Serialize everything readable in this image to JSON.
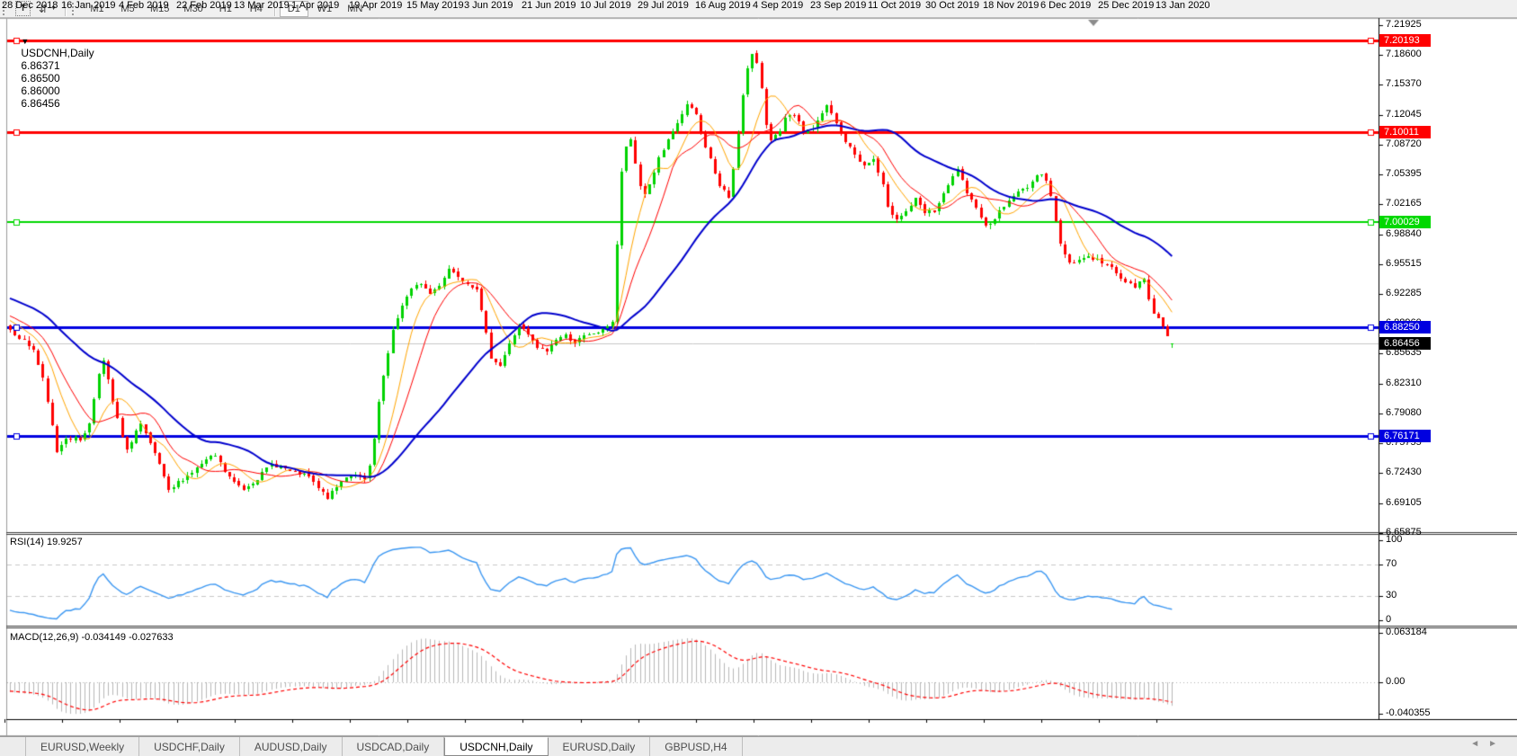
{
  "toolbar": {
    "text_tool_label": "T",
    "cursor_tool_icon": "arrows",
    "timeframes": [
      "M1",
      "M5",
      "M15",
      "M30",
      "H1",
      "H4",
      "D1",
      "W1",
      "MN"
    ],
    "active_timeframe": "D1"
  },
  "chart_info": {
    "collapse_arrow": "▼",
    "symbol_period": "USDCNH,Daily",
    "open": "6.86371",
    "high": "6.86500",
    "low": "6.86000",
    "close": "6.86456"
  },
  "chart_data": {
    "type": "candlestick",
    "title": "USDCNH,Daily",
    "symbol": "USDCNH",
    "timeframe": "Daily",
    "bar_count": 250,
    "pre_bars": 40,
    "pre_trend": [
      6.96,
      6.886
    ],
    "last_bar_ohlc": [
      6.86371,
      6.865,
      6.86,
      6.86456
    ],
    "close_anchors": [
      [
        0,
        6.88
      ],
      [
        3,
        6.868
      ],
      [
        5,
        6.858
      ],
      [
        7,
        6.825
      ],
      [
        9,
        6.773
      ],
      [
        10,
        6.745
      ],
      [
        12,
        6.76
      ],
      [
        15,
        6.758
      ],
      [
        17,
        6.775
      ],
      [
        19,
        6.833
      ],
      [
        20,
        6.845
      ],
      [
        22,
        6.8
      ],
      [
        24,
        6.76
      ],
      [
        25,
        6.745
      ],
      [
        27,
        6.768
      ],
      [
        28,
        6.775
      ],
      [
        30,
        6.752
      ],
      [
        32,
        6.73
      ],
      [
        34,
        6.7
      ],
      [
        36,
        6.71
      ],
      [
        38,
        6.718
      ],
      [
        40,
        6.726
      ],
      [
        42,
        6.735
      ],
      [
        44,
        6.74
      ],
      [
        46,
        6.722
      ],
      [
        48,
        6.71
      ],
      [
        50,
        6.703
      ],
      [
        53,
        6.715
      ],
      [
        56,
        6.73
      ],
      [
        58,
        6.728
      ],
      [
        60,
        6.722
      ],
      [
        62,
        6.72
      ],
      [
        64,
        6.716
      ],
      [
        66,
        6.703
      ],
      [
        68,
        6.693
      ],
      [
        70,
        6.705
      ],
      [
        72,
        6.717
      ],
      [
        74,
        6.72
      ],
      [
        76,
        6.712
      ],
      [
        77,
        6.728
      ],
      [
        78,
        6.758
      ],
      [
        79,
        6.798
      ],
      [
        80,
        6.828
      ],
      [
        82,
        6.878
      ],
      [
        84,
        6.908
      ],
      [
        86,
        6.925
      ],
      [
        88,
        6.932
      ],
      [
        90,
        6.92
      ],
      [
        92,
        6.93
      ],
      [
        94,
        6.948
      ],
      [
        96,
        6.94
      ],
      [
        98,
        6.932
      ],
      [
        100,
        6.927
      ],
      [
        101,
        6.9
      ],
      [
        103,
        6.85
      ],
      [
        105,
        6.84
      ],
      [
        107,
        6.864
      ],
      [
        109,
        6.886
      ],
      [
        111,
        6.874
      ],
      [
        113,
        6.86
      ],
      [
        115,
        6.856
      ],
      [
        117,
        6.87
      ],
      [
        119,
        6.874
      ],
      [
        121,
        6.866
      ],
      [
        123,
        6.872
      ],
      [
        125,
        6.876
      ],
      [
        127,
        6.88
      ],
      [
        129,
        6.89
      ],
      [
        130,
        6.975
      ],
      [
        131,
        7.055
      ],
      [
        132,
        7.085
      ],
      [
        133,
        7.09
      ],
      [
        134,
        7.065
      ],
      [
        135,
        7.04
      ],
      [
        136,
        7.032
      ],
      [
        137,
        7.042
      ],
      [
        139,
        7.07
      ],
      [
        141,
        7.09
      ],
      [
        143,
        7.11
      ],
      [
        145,
        7.13
      ],
      [
        147,
        7.12
      ],
      [
        148,
        7.1
      ],
      [
        150,
        7.07
      ],
      [
        152,
        7.04
      ],
      [
        154,
        7.028
      ],
      [
        155,
        7.06
      ],
      [
        156,
        7.1
      ],
      [
        157,
        7.14
      ],
      [
        158,
        7.17
      ],
      [
        159,
        7.185
      ],
      [
        160,
        7.178
      ],
      [
        161,
        7.15
      ],
      [
        162,
        7.11
      ],
      [
        163,
        7.09
      ],
      [
        165,
        7.1
      ],
      [
        166,
        7.115
      ],
      [
        168,
        7.12
      ],
      [
        170,
        7.1
      ],
      [
        172,
        7.105
      ],
      [
        174,
        7.12
      ],
      [
        175,
        7.13
      ],
      [
        177,
        7.11
      ],
      [
        179,
        7.09
      ],
      [
        181,
        7.075
      ],
      [
        183,
        7.062
      ],
      [
        185,
        7.07
      ],
      [
        187,
        7.04
      ],
      [
        188,
        7.015
      ],
      [
        190,
        7.005
      ],
      [
        192,
        7.012
      ],
      [
        194,
        7.025
      ],
      [
        196,
        7.01
      ],
      [
        198,
        7.012
      ],
      [
        200,
        7.03
      ],
      [
        202,
        7.05
      ],
      [
        203,
        7.06
      ],
      [
        205,
        7.03
      ],
      [
        207,
        7.018
      ],
      [
        209,
        6.995
      ],
      [
        211,
        7.005
      ],
      [
        213,
        7.018
      ],
      [
        215,
        7.03
      ],
      [
        217,
        7.036
      ],
      [
        219,
        7.045
      ],
      [
        221,
        7.055
      ],
      [
        222,
        7.048
      ],
      [
        223,
        7.03
      ],
      [
        224,
        7.0
      ],
      [
        225,
        6.975
      ],
      [
        227,
        6.955
      ],
      [
        229,
        6.958
      ],
      [
        231,
        6.962
      ],
      [
        233,
        6.958
      ],
      [
        235,
        6.952
      ],
      [
        237,
        6.945
      ],
      [
        239,
        6.932
      ],
      [
        241,
        6.928
      ],
      [
        243,
        6.936
      ],
      [
        244,
        6.915
      ],
      [
        245,
        6.9
      ],
      [
        246,
        6.895
      ],
      [
        247,
        6.882
      ],
      [
        248,
        6.872
      ],
      [
        249,
        6.8646
      ]
    ],
    "y_axis": {
      "tick_labels": [
        "7.21925",
        "7.18600",
        "7.15370",
        "7.12045",
        "7.08720",
        "7.05395",
        "7.02165",
        "6.98840",
        "6.95515",
        "6.92285",
        "6.88960",
        "6.85635",
        "6.82310",
        "6.79080",
        "6.75755",
        "6.72430",
        "6.69105",
        "6.65875"
      ],
      "top_tick_value": 7.21925,
      "tick_step": 0.03325
    },
    "x_axis_labels": [
      "28 Dec 2018",
      "16 Jan 2019",
      "4 Feb 2019",
      "22 Feb 2019",
      "13 Mar 2019",
      "1 Apr 2019",
      "19 Apr 2019",
      "15 May 2019",
      "3 Jun 2019",
      "21 Jun 2019",
      "10 Jul 2019",
      "29 Jul 2019",
      "16 Aug 2019",
      "4 Sep 2019",
      "23 Sep 2019",
      "11 Oct 2019",
      "30 Oct 2019",
      "18 Nov 2019",
      "6 Dec 2019",
      "25 Dec 2019",
      "13 Jan 2020"
    ],
    "horizontal_lines": [
      {
        "price": 7.20193,
        "label": "7.20193",
        "color": "#FF0000",
        "width": 3
      },
      {
        "price": 7.10011,
        "label": "7.10011",
        "color": "#FF0000",
        "width": 3
      },
      {
        "price": 7.00029,
        "label": "7.00029",
        "color": "#00D800",
        "width": 2
      },
      {
        "price": 6.8825,
        "label": "6.88250",
        "color": "#0000E0",
        "width": 3
      },
      {
        "price": 6.76171,
        "label": "6.76171",
        "color": "#0000E0",
        "width": 3
      }
    ],
    "current_price": {
      "value": 6.86456,
      "label": "6.86456",
      "line_color": "#C8C8C8",
      "badge_bg": "#000000"
    },
    "moving_averages": [
      {
        "period": 8,
        "color": "#FFA500",
        "width": 1
      },
      {
        "period": 13,
        "color": "#FF0000",
        "width": 1
      },
      {
        "period": 34,
        "color": "#0000CD",
        "width": 2
      }
    ],
    "colors": {
      "bull": "#00D300",
      "bear": "#FF0000",
      "background": "#FFFFFF",
      "axis": "#000000"
    },
    "legend_position": "none",
    "grid": false
  },
  "rsi_panel": {
    "label": "RSI(14) 19.9257",
    "period": 14,
    "current_value": "19.9257",
    "line_color": "#3B97F2",
    "level_color": "#C8C8C8",
    "ticks": [
      {
        "value": 100,
        "label": "100",
        "dashed": false
      },
      {
        "value": 70,
        "label": "70",
        "dashed": true
      },
      {
        "value": 30,
        "label": "30",
        "dashed": true
      },
      {
        "value": 0,
        "label": "0",
        "dashed": false
      }
    ]
  },
  "macd_panel": {
    "label": "MACD(12,26,9) -0.034149 -0.027633",
    "fast": 12,
    "slow": 26,
    "signal": 9,
    "macd_value": "-0.034149",
    "signal_value": "-0.027633",
    "histogram_color": "#B8B8B8",
    "signal_color": "#FF0000",
    "ticks": [
      {
        "value": 0.063184,
        "label": "0.063184"
      },
      {
        "value": 0.0,
        "label": "0.00"
      },
      {
        "value": -0.040355,
        "label": "-0.040355"
      }
    ]
  },
  "tabs": {
    "items": [
      "EURUSD,Weekly",
      "USDCHF,Daily",
      "AUDUSD,Daily",
      "USDCAD,Daily",
      "USDCNH,Daily",
      "EURUSD,Daily",
      "GBPUSD,H4"
    ],
    "active_index": 4,
    "scroll_left_icon": "◄",
    "scroll_right_icon": "►"
  }
}
